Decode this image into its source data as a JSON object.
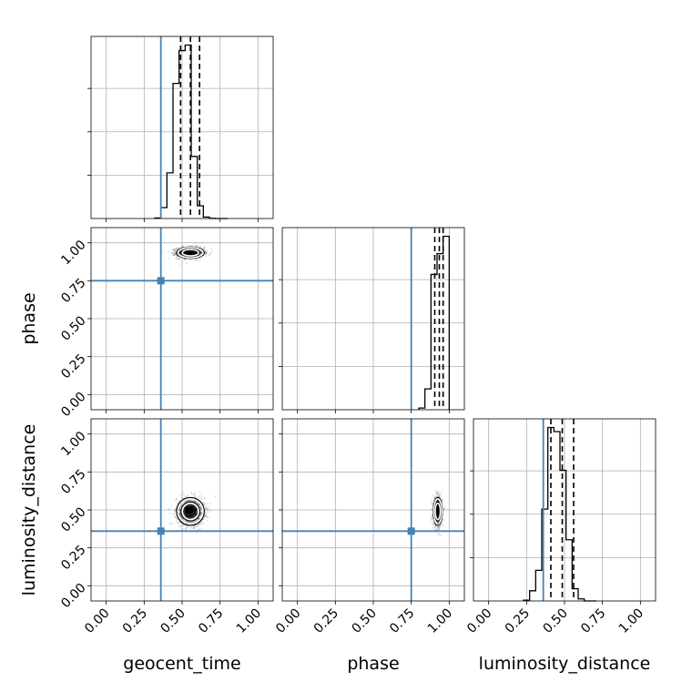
{
  "chart_data": {
    "type": "corner",
    "parameters": [
      "geocent_time",
      "phase",
      "luminosity_distance"
    ],
    "axis_range": [
      -0.1,
      1.1
    ],
    "tick_values": [
      0.0,
      0.25,
      0.5,
      0.75,
      1.0
    ],
    "tick_labels": [
      "0.00",
      "0.25",
      "0.50",
      "0.75",
      "1.00"
    ],
    "grid": true,
    "truths": {
      "geocent_time": 0.36,
      "phase": 0.75,
      "luminosity_distance": 0.36
    },
    "truth_color": "#4682b4",
    "hist_color": "#000000",
    "histograms": [
      {
        "parameter": "geocent_time",
        "bin_edges": [
          0.32,
          0.36,
          0.4,
          0.44,
          0.48,
          0.52,
          0.56,
          0.6,
          0.64,
          0.68,
          0.72,
          0.76,
          0.8
        ],
        "counts": [
          0.3,
          6,
          25,
          74,
          92,
          95,
          34,
          7,
          0.8,
          0.1,
          0,
          0
        ],
        "quantiles": [
          0.49,
          0.555,
          0.615
        ]
      },
      {
        "parameter": "phase",
        "bin_edges": [
          0.8,
          0.84,
          0.88,
          0.92,
          0.96,
          1.0
        ],
        "counts": [
          1,
          12,
          78,
          90,
          100
        ],
        "quantiles": [
          0.905,
          0.935,
          0.96
        ]
      },
      {
        "parameter": "luminosity_distance",
        "bin_edges": [
          0.23,
          0.27,
          0.31,
          0.35,
          0.39,
          0.43,
          0.47,
          0.51,
          0.55,
          0.59,
          0.63,
          0.67,
          0.71
        ],
        "counts": [
          0.4,
          5,
          15,
          45,
          85,
          83,
          64,
          30,
          6,
          1,
          0,
          0
        ],
        "quantiles": [
          0.41,
          0.485,
          0.56
        ]
      }
    ],
    "scatter_panels": [
      {
        "x": "geocent_time",
        "y": "phase",
        "center": [
          0.555,
          0.935
        ],
        "spread": [
          0.045,
          0.018
        ]
      },
      {
        "x": "geocent_time",
        "y": "luminosity_distance",
        "center": [
          0.555,
          0.49
        ],
        "spread": [
          0.045,
          0.045
        ]
      },
      {
        "x": "phase",
        "y": "luminosity_distance",
        "center": [
          0.925,
          0.49
        ],
        "spread": [
          0.014,
          0.045
        ]
      }
    ]
  }
}
